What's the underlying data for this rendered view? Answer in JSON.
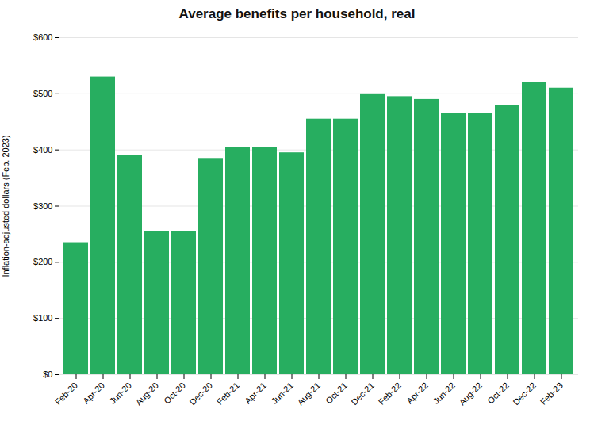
{
  "chart_data": {
    "type": "bar",
    "title": "Average benefits per household, real",
    "ylabel": "Inflation-adjusted dollars (Feb. 2023)",
    "categories": [
      "Feb-20",
      "Apr-20",
      "Jun-20",
      "Aug-20",
      "Oct-20",
      "Dec-20",
      "Feb-21",
      "Apr-21",
      "Jun-21",
      "Aug-21",
      "Oct-21",
      "Dec-21",
      "Feb-22",
      "Apr-22",
      "Jun-22",
      "Aug-22",
      "Oct-22",
      "Dec-22",
      "Feb-23"
    ],
    "values": [
      235,
      530,
      390,
      255,
      255,
      385,
      405,
      405,
      395,
      455,
      455,
      500,
      495,
      490,
      465,
      465,
      480,
      520,
      510
    ],
    "color": "#27ae60",
    "ylim": [
      0,
      600
    ],
    "yticks": [
      {
        "value": 0,
        "label": "$0"
      },
      {
        "value": 100,
        "label": "$100"
      },
      {
        "value": 200,
        "label": "$200"
      },
      {
        "value": 300,
        "label": "$300"
      },
      {
        "value": 400,
        "label": "$400"
      },
      {
        "value": 500,
        "label": "$500"
      },
      {
        "value": 600,
        "label": "$600"
      }
    ],
    "grid": true
  }
}
